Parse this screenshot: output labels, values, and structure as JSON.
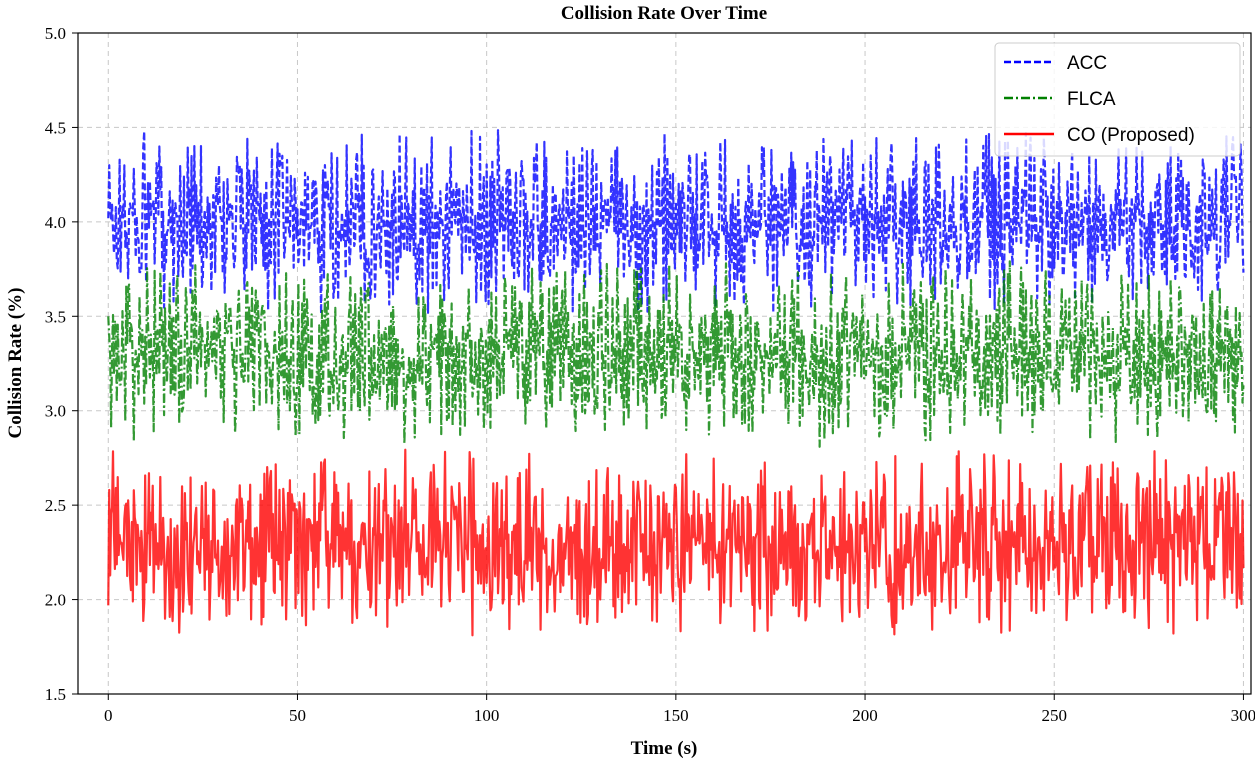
{
  "chart_data": {
    "type": "line",
    "title": "Collision Rate Over Time",
    "xlabel": "Time (s)",
    "ylabel": "Collision Rate (%)",
    "xlim": [
      -8,
      302
    ],
    "ylim": [
      1.5,
      5.0
    ],
    "xticks": [
      0,
      50,
      100,
      150,
      200,
      250,
      300
    ],
    "xtick_labels": [
      "0",
      "50",
      "100",
      "150",
      "200",
      "250",
      "300"
    ],
    "yticks": [
      1.5,
      2.0,
      2.5,
      3.0,
      3.5,
      4.0,
      4.5,
      5.0
    ],
    "ytick_labels": [
      "1.5",
      "2.0",
      "2.5",
      "3.0",
      "3.5",
      "4.0",
      "4.5",
      "5.0"
    ],
    "grid": true,
    "legend_position": "top-right",
    "x_sampling": {
      "start": 0,
      "end": 300,
      "step": 0.25
    },
    "series": [
      {
        "name": "ACC",
        "color": "#0000ff",
        "line_style": "dashed",
        "min": 3.5,
        "max": 4.5,
        "mean": 4.0
      },
      {
        "name": "FLCA",
        "color": "#008000",
        "line_style": "dash-dot",
        "min": 2.8,
        "max": 3.8,
        "mean": 3.3
      },
      {
        "name": "CO (Proposed)",
        "color": "#ff0000",
        "line_style": "solid",
        "min": 1.8,
        "max": 2.8,
        "mean": 2.3
      }
    ]
  }
}
